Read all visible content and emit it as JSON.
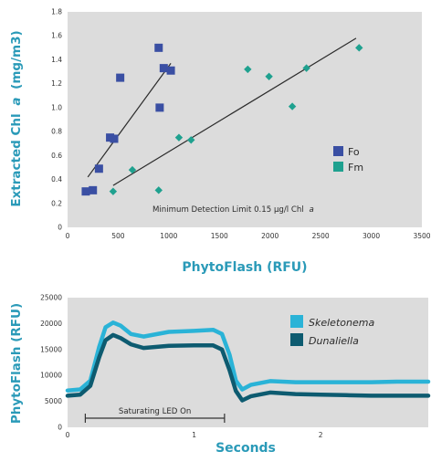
{
  "chart_data": [
    {
      "type": "scatter",
      "xlabel": "PhytoFlash (RFU)",
      "ylabel": "Extracted Chl",
      "ylabel_italic": "a",
      "ylabel_unit": "(mg/m3)",
      "xlim": [
        0,
        3500
      ],
      "ylim": [
        0,
        1.8
      ],
      "xticks": [
        "0",
        "500",
        "1000",
        "1500",
        "2000",
        "2500",
        "3000",
        "3500"
      ],
      "yticks": [
        "0",
        "0.2",
        "0.4",
        "0.6",
        "0.8",
        "1.0",
        "1.2",
        "1.4",
        "1.6",
        "1.8"
      ],
      "xtick_values": [
        0,
        500,
        1000,
        1500,
        2000,
        2500,
        3000,
        3500
      ],
      "ytick_values": [
        0,
        0.2,
        0.4,
        0.6,
        0.8,
        1.0,
        1.2,
        1.4,
        1.6,
        1.8
      ],
      "grid": false,
      "legend_position": "right",
      "annotation": "Minimum Detection Limit 0.15 µg/l Chl",
      "annotation_italic": "a",
      "series": [
        {
          "name": "Fo",
          "color": "#3a4fa3",
          "marker": "square",
          "points": [
            [
              180,
              0.3
            ],
            [
              250,
              0.31
            ],
            [
              310,
              0.49
            ],
            [
              420,
              0.75
            ],
            [
              460,
              0.74
            ],
            [
              520,
              1.25
            ],
            [
              900,
              1.5
            ],
            [
              910,
              1.0
            ],
            [
              950,
              1.33
            ],
            [
              1020,
              1.31
            ]
          ],
          "fit": [
            [
              200,
              0.42
            ],
            [
              1020,
              1.37
            ]
          ]
        },
        {
          "name": "Fm",
          "color": "#1fa18f",
          "marker": "diamond",
          "points": [
            [
              450,
              0.3
            ],
            [
              640,
              0.48
            ],
            [
              900,
              0.31
            ],
            [
              1100,
              0.75
            ],
            [
              1220,
              0.73
            ],
            [
              1780,
              1.32
            ],
            [
              1990,
              1.26
            ],
            [
              2220,
              1.01
            ],
            [
              2360,
              1.33
            ],
            [
              2880,
              1.5
            ]
          ],
          "fit": [
            [
              450,
              0.35
            ],
            [
              2850,
              1.58
            ]
          ]
        }
      ]
    },
    {
      "type": "line",
      "xlabel": "Seconds",
      "ylabel": "PhytoFlash (RFU)",
      "xlim": [
        0,
        2.85
      ],
      "ylim": [
        0,
        25000
      ],
      "xticks": [
        "0",
        "1",
        "2"
      ],
      "yticks": [
        "0",
        "5000",
        "10000",
        "15000",
        "20000",
        "25000"
      ],
      "xtick_values": [
        0,
        1,
        2
      ],
      "ytick_values": [
        0,
        5000,
        10000,
        15000,
        20000,
        25000
      ],
      "grid": false,
      "legend_position": "top-right",
      "annotation": "Saturating LED On",
      "led_on_interval": [
        0.14,
        1.24
      ],
      "series": [
        {
          "name": "Skeletonema",
          "color": "#2ab3d7",
          "points": [
            [
              0,
              7100
            ],
            [
              0.1,
              7300
            ],
            [
              0.18,
              9000
            ],
            [
              0.25,
              15500
            ],
            [
              0.3,
              19300
            ],
            [
              0.36,
              20200
            ],
            [
              0.42,
              19600
            ],
            [
              0.5,
              18000
            ],
            [
              0.6,
              17500
            ],
            [
              0.8,
              18400
            ],
            [
              1.0,
              18600
            ],
            [
              1.15,
              18800
            ],
            [
              1.22,
              18000
            ],
            [
              1.28,
              14000
            ],
            [
              1.33,
              9000
            ],
            [
              1.38,
              7300
            ],
            [
              1.45,
              8200
            ],
            [
              1.6,
              8900
            ],
            [
              1.8,
              8700
            ],
            [
              2.0,
              8700
            ],
            [
              2.2,
              8700
            ],
            [
              2.4,
              8700
            ],
            [
              2.6,
              8800
            ],
            [
              2.85,
              8800
            ]
          ]
        },
        {
          "name": "Dunaliella",
          "color": "#0d5b70",
          "points": [
            [
              0,
              6100
            ],
            [
              0.1,
              6300
            ],
            [
              0.18,
              8000
            ],
            [
              0.25,
              13500
            ],
            [
              0.3,
              16800
            ],
            [
              0.36,
              17800
            ],
            [
              0.42,
              17200
            ],
            [
              0.5,
              16000
            ],
            [
              0.6,
              15300
            ],
            [
              0.8,
              15700
            ],
            [
              1.0,
              15800
            ],
            [
              1.15,
              15800
            ],
            [
              1.22,
              15000
            ],
            [
              1.28,
              11000
            ],
            [
              1.33,
              7000
            ],
            [
              1.38,
              5200
            ],
            [
              1.45,
              6000
            ],
            [
              1.6,
              6700
            ],
            [
              1.8,
              6400
            ],
            [
              2.0,
              6300
            ],
            [
              2.2,
              6200
            ],
            [
              2.4,
              6100
            ],
            [
              2.6,
              6100
            ],
            [
              2.85,
              6100
            ]
          ]
        }
      ]
    }
  ]
}
